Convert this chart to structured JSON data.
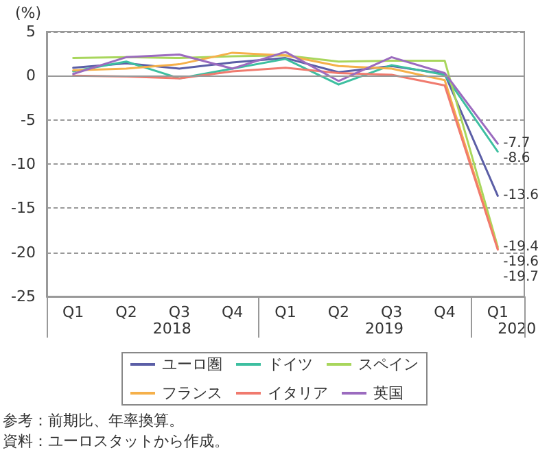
{
  "chart_data": {
    "type": "line",
    "ylabel": "(%)",
    "categories": [
      "Q1",
      "Q2",
      "Q3",
      "Q4",
      "Q1",
      "Q2",
      "Q3",
      "Q4",
      "Q1"
    ],
    "series": [
      {
        "name": "ユーロ圏",
        "color": "#5b5ea6",
        "values": [
          0.9,
          1.4,
          0.8,
          1.5,
          2.0,
          0.4,
          1.1,
          0.2,
          -13.6
        ],
        "value_labels": [
          null,
          null,
          null,
          null,
          null,
          null,
          null,
          null,
          "-13.6"
        ]
      },
      {
        "name": "ドイツ",
        "color": "#3dbfa0",
        "values": [
          0.5,
          1.6,
          -0.3,
          0.8,
          1.9,
          -1.0,
          1.2,
          0.1,
          -8.6
        ],
        "value_labels": [
          null,
          null,
          null,
          null,
          null,
          null,
          null,
          null,
          "-8.6"
        ]
      },
      {
        "name": "スペイン",
        "color": "#a8d65c",
        "values": [
          2.0,
          2.1,
          2.0,
          2.2,
          2.3,
          1.6,
          1.7,
          1.7,
          -19.4
        ],
        "value_labels": [
          null,
          null,
          null,
          null,
          null,
          null,
          null,
          null,
          "-19.4"
        ]
      },
      {
        "name": "フランス",
        "color": "#f5b04a",
        "values": [
          0.6,
          0.8,
          1.3,
          2.6,
          2.3,
          1.1,
          0.8,
          -0.5,
          -19.6
        ],
        "value_labels": [
          null,
          null,
          null,
          null,
          null,
          null,
          null,
          null,
          "-19.6"
        ]
      },
      {
        "name": "イタリア",
        "color": "#f07a6e",
        "values": [
          0.0,
          -0.1,
          -0.3,
          0.5,
          0.9,
          0.3,
          0.1,
          -1.1,
          -19.7
        ],
        "value_labels": [
          null,
          null,
          null,
          null,
          null,
          null,
          null,
          null,
          "-19.7"
        ]
      },
      {
        "name": "英国",
        "color": "#9b6bbf",
        "values": [
          0.2,
          2.1,
          2.4,
          0.8,
          2.7,
          -0.6,
          2.1,
          0.3,
          -7.7
        ],
        "value_labels": [
          null,
          null,
          null,
          null,
          null,
          null,
          null,
          null,
          "-7.7"
        ]
      }
    ],
    "ylim": [
      -25,
      5
    ],
    "yticks": [
      -25,
      -20,
      -15,
      -10,
      -5,
      0,
      5
    ],
    "ref_lines": [
      {
        "axis": "y",
        "value": 0,
        "color": "#999999",
        "line_style": "solid"
      }
    ],
    "grid": "y",
    "legend": "bottom",
    "marker": "none",
    "line_style": "solid",
    "annotations": [
      "2018",
      "2019",
      "2020",
      "参考：前期比、年率換算。",
      "資料：ユーロスタットから作成。"
    ]
  }
}
